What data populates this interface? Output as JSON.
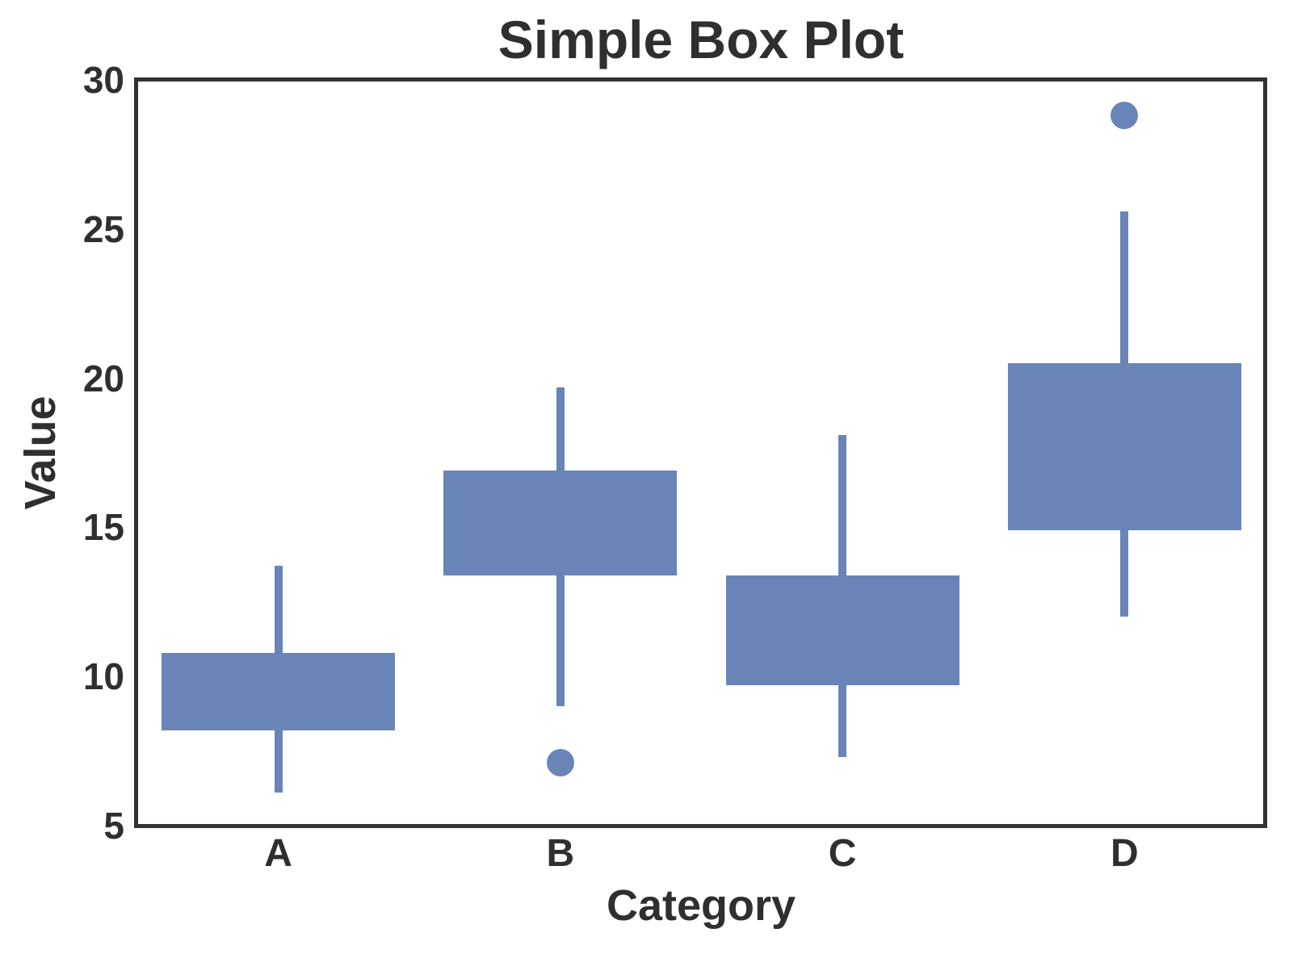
{
  "figure": {
    "title": "Simple Box Plot",
    "x_axis": {
      "label": "Category"
    },
    "y_axis": {
      "label": "Value"
    }
  },
  "colors": {
    "box_fill": "#6985B8",
    "axis_frame": "#323232",
    "text": "#2F2F2F",
    "background": "#FFFFFF"
  },
  "chart_data": {
    "type": "box",
    "title": "Simple Box Plot",
    "xlabel": "Category",
    "ylabel": "Value",
    "categories": [
      "A",
      "B",
      "C",
      "D"
    ],
    "ylim": [
      5,
      30
    ],
    "yticks": [
      5,
      10,
      15,
      20,
      25,
      30
    ],
    "grid": false,
    "legend": false,
    "median_line_visible": false,
    "whisker_caps_visible": false,
    "series": [
      {
        "category": "A",
        "whisker_low": 6.1,
        "q1": 8.2,
        "q3": 10.8,
        "whisker_high": 13.7,
        "outliers": []
      },
      {
        "category": "B",
        "whisker_low": 9.0,
        "q1": 13.4,
        "q3": 16.9,
        "whisker_high": 19.7,
        "outliers": [
          7.1
        ]
      },
      {
        "category": "C",
        "whisker_low": 7.3,
        "q1": 9.7,
        "q3": 13.4,
        "whisker_high": 18.1,
        "outliers": []
      },
      {
        "category": "D",
        "whisker_low": 12.0,
        "q1": 14.9,
        "q3": 20.5,
        "whisker_high": 25.6,
        "outliers": [
          28.8
        ]
      }
    ]
  }
}
